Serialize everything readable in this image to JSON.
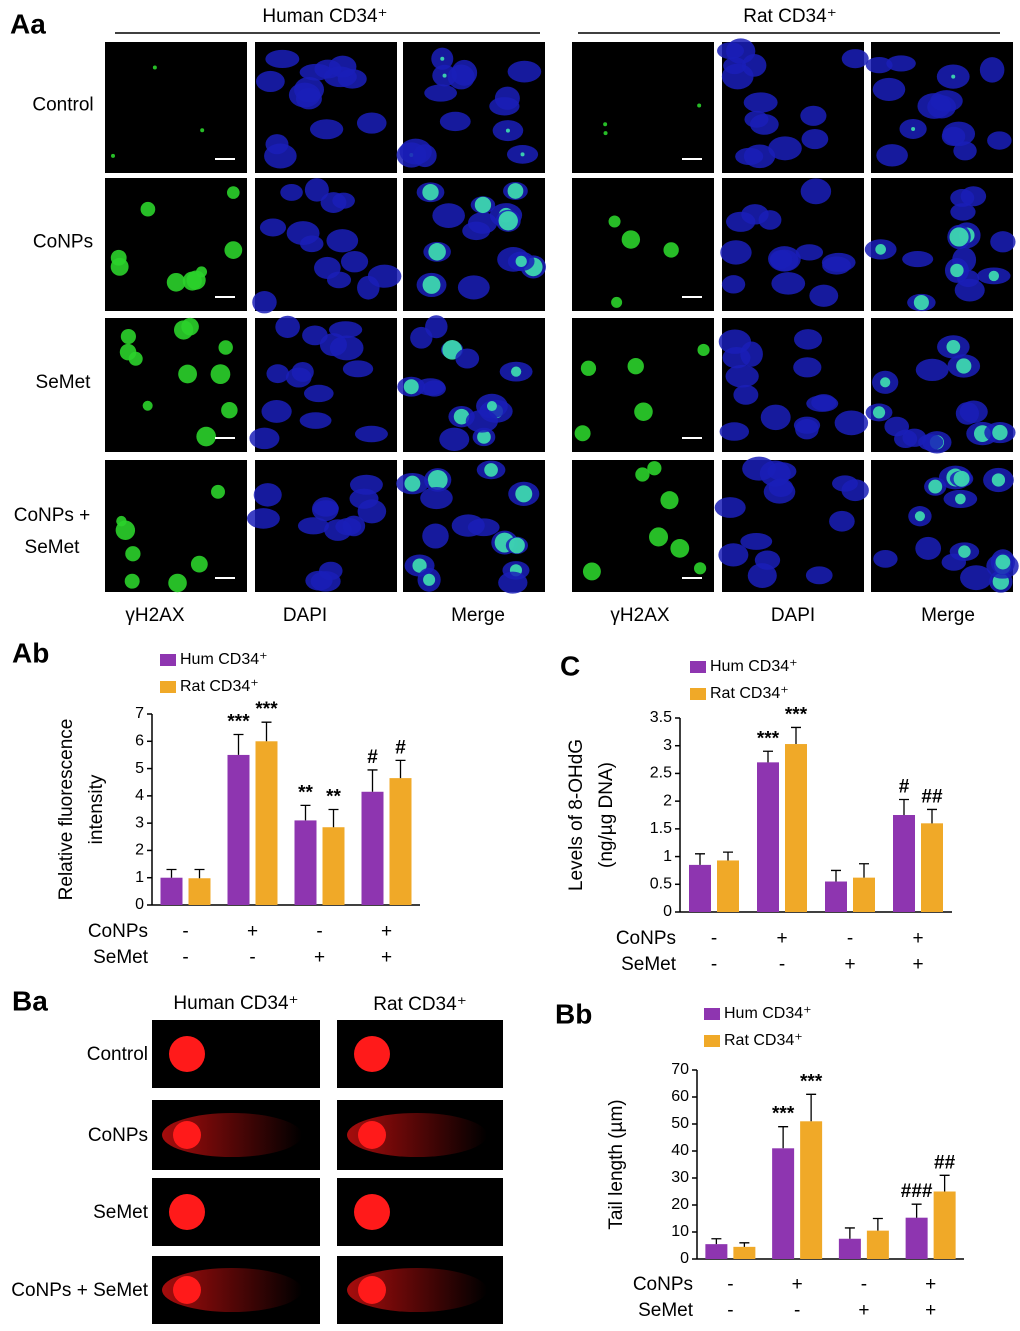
{
  "figure": {
    "a": {
      "panel": "Aa",
      "headers": [
        "Human CD34⁺",
        "Rat CD34⁺"
      ],
      "rows": [
        "Control",
        "CoNPs",
        "SeMet",
        [
          "CoNPs +",
          "SeMet"
        ]
      ],
      "columns": [
        "γH2AX",
        "DAPI",
        "Merge"
      ]
    },
    "b": {
      "panel": "Ba",
      "headers": [
        "Human CD34⁺",
        "Rat CD34⁺"
      ],
      "rows": [
        "Control",
        "CoNPs",
        "SeMet",
        "CoNPs + SeMet"
      ]
    }
  },
  "chart_data": [
    {
      "type": "bar",
      "panel": "Ab",
      "ylabel": [
        "Relative fluorescence",
        "intensity"
      ],
      "ylim": [
        0,
        7
      ],
      "yticks": [
        0,
        1,
        2,
        3,
        4,
        5,
        6,
        7
      ],
      "conditions": [
        {
          "name": "CoNPs",
          "signs": [
            "-",
            "+",
            "-",
            "+"
          ]
        },
        {
          "name": "SeMet",
          "signs": [
            "-",
            "-",
            "+",
            "+"
          ]
        }
      ],
      "series": [
        {
          "name": "Hum CD34⁺",
          "color": "#8e35b0",
          "values": [
            1.0,
            5.5,
            3.1,
            4.15
          ],
          "errors": [
            0.3,
            0.75,
            0.55,
            0.8
          ],
          "annotations": [
            null,
            "***",
            "**",
            "#"
          ]
        },
        {
          "name": "Rat CD34⁺",
          "color": "#f0a928",
          "values": [
            0.98,
            6.0,
            2.85,
            4.65
          ],
          "errors": [
            0.32,
            0.7,
            0.65,
            0.65
          ],
          "annotations": [
            null,
            "***",
            "**",
            "#"
          ]
        }
      ]
    },
    {
      "type": "bar",
      "panel": "C",
      "ylabel": [
        "Levels of 8-OHdG",
        "(ng/µg DNA)"
      ],
      "ylim": [
        0,
        3.5
      ],
      "yticks": [
        0,
        0.5,
        1,
        1.5,
        2,
        2.5,
        3,
        3.5
      ],
      "conditions": [
        {
          "name": "CoNPs",
          "signs": [
            "-",
            "+",
            "-",
            "+"
          ]
        },
        {
          "name": "SeMet",
          "signs": [
            "-",
            "-",
            "+",
            "+"
          ]
        }
      ],
      "series": [
        {
          "name": "Hum CD34⁺",
          "color": "#8e35b0",
          "values": [
            0.85,
            2.7,
            0.55,
            1.75
          ],
          "errors": [
            0.2,
            0.2,
            0.2,
            0.28
          ],
          "annotations": [
            null,
            "***",
            null,
            "#"
          ]
        },
        {
          "name": "Rat CD34⁺",
          "color": "#f0a928",
          "values": [
            0.93,
            3.03,
            0.62,
            1.6
          ],
          "errors": [
            0.15,
            0.3,
            0.25,
            0.25
          ],
          "annotations": [
            null,
            "***",
            null,
            "##"
          ]
        }
      ]
    },
    {
      "type": "bar",
      "panel": "Bb",
      "ylabel": [
        "Tail length (µm)"
      ],
      "ylim": [
        0,
        70
      ],
      "yticks": [
        0,
        10,
        20,
        30,
        40,
        50,
        60,
        70
      ],
      "conditions": [
        {
          "name": "CoNPs",
          "signs": [
            "-",
            "+",
            "-",
            "+"
          ]
        },
        {
          "name": "SeMet",
          "signs": [
            "-",
            "-",
            "+",
            "+"
          ]
        }
      ],
      "series": [
        {
          "name": "Hum CD34⁺",
          "color": "#8e35b0",
          "values": [
            5.5,
            41,
            7.5,
            15.3
          ],
          "errors": [
            2,
            8,
            4,
            5
          ],
          "annotations": [
            null,
            "***",
            null,
            "###"
          ]
        },
        {
          "name": "Rat CD34⁺",
          "color": "#f0a928",
          "values": [
            4.5,
            51,
            10.5,
            25
          ],
          "errors": [
            1.5,
            10,
            4.5,
            6
          ],
          "annotations": [
            null,
            "***",
            null,
            "##"
          ]
        }
      ]
    }
  ]
}
